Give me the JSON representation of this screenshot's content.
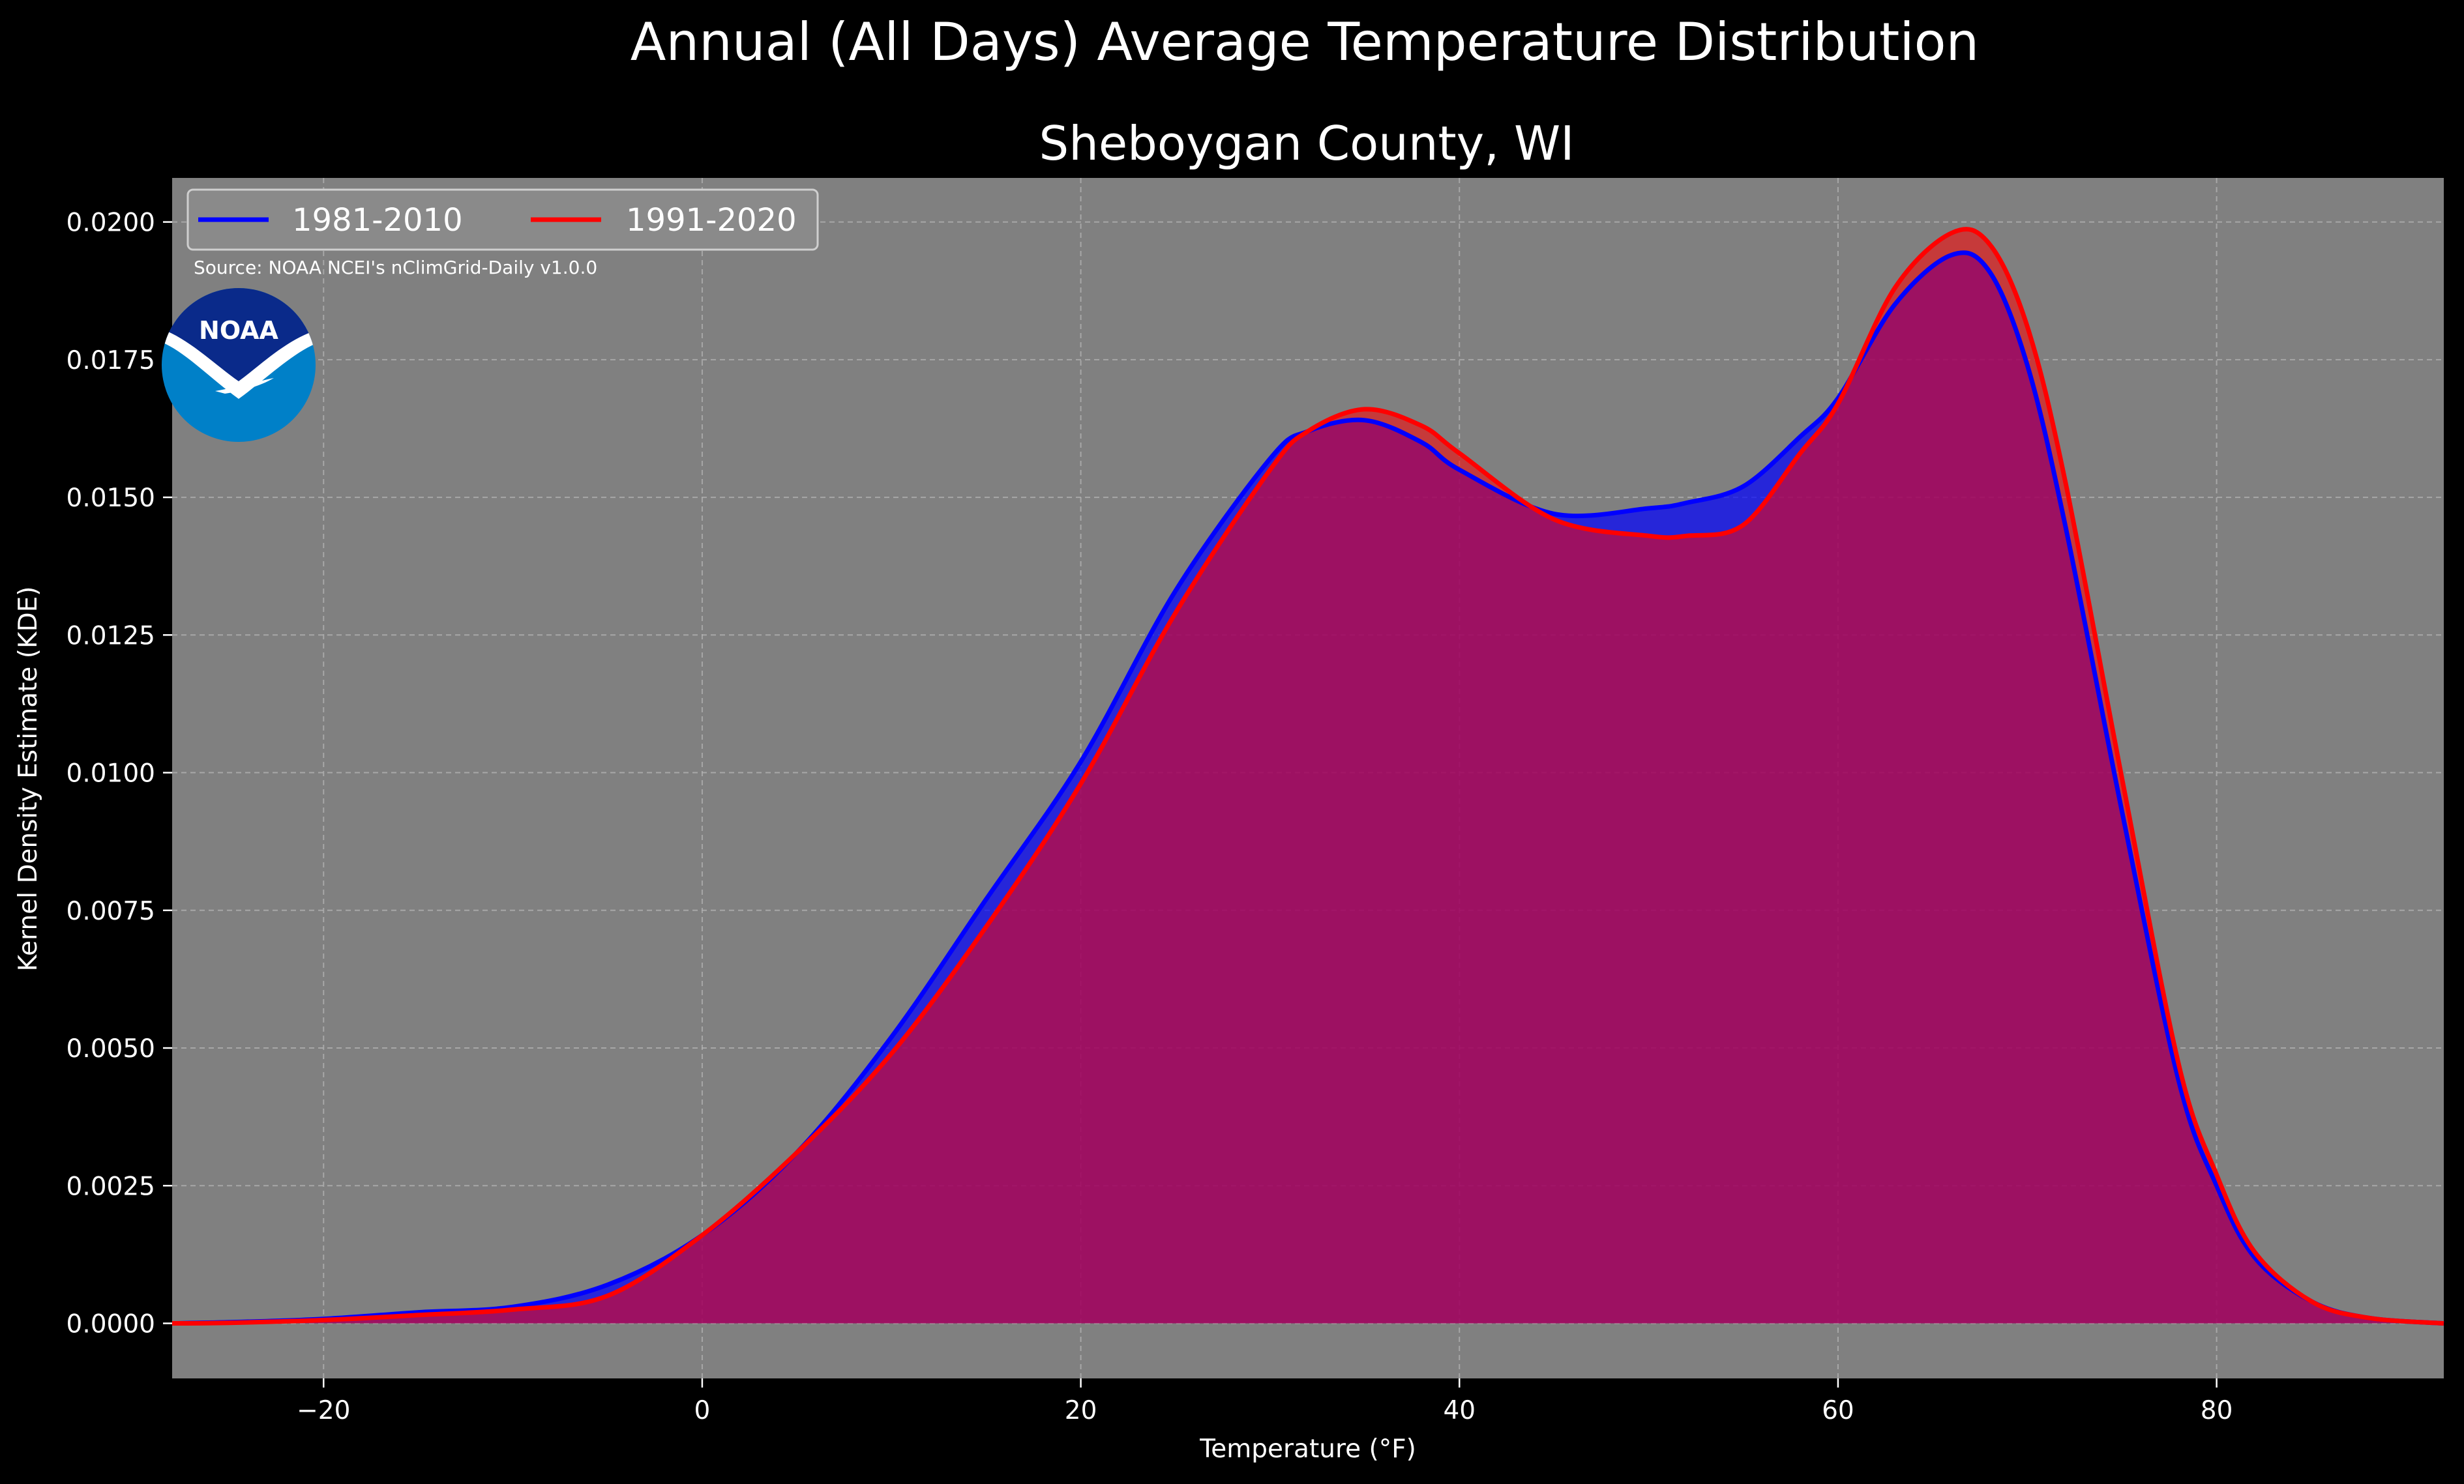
{
  "title": "Annual (All Days) Average Temperature Distribution",
  "subtitle": "Sheboygan County, WI",
  "source": "Source: NOAA NCEI's nClimGrid-Daily v1.0.0",
  "logo": {
    "text": "NOAA",
    "colors": {
      "top": "#0a2a8a",
      "bottom": "#0080c8",
      "bird": "#ffffff"
    }
  },
  "colors": {
    "background": "#000000",
    "plot_background": "#808080",
    "series_1981_2010": "#0000ff",
    "series_1991_2020": "#ff0000",
    "overlap_fill": "#a01e5a"
  },
  "chart_data": {
    "type": "area",
    "title": "Annual (All Days) Average Temperature Distribution",
    "subtitle": "Sheboygan County, WI",
    "xlabel": "Temperature (°F)",
    "ylabel": "Kernel Density Estimate (KDE)",
    "xlim": [
      -28,
      92
    ],
    "ylim": [
      -0.001,
      0.0208
    ],
    "xticks": [
      -20,
      0,
      20,
      40,
      60,
      80
    ],
    "xtick_labels": [
      "−20",
      "0",
      "20",
      "40",
      "60",
      "80"
    ],
    "yticks": [
      0,
      0.0025,
      0.005,
      0.0075,
      0.01,
      0.0125,
      0.015,
      0.0175,
      0.02
    ],
    "ytick_labels": [
      "0.0000",
      "0.0025",
      "0.0050",
      "0.0075",
      "0.0100",
      "0.0125",
      "0.0150",
      "0.0175",
      "0.0200"
    ],
    "grid": true,
    "legend_position": "top-left",
    "x": [
      -28,
      -25,
      -20,
      -15,
      -10,
      -5,
      0,
      5,
      10,
      15,
      20,
      25,
      30,
      32,
      35,
      38,
      40,
      45,
      50,
      52,
      55,
      58,
      60,
      63,
      66,
      68,
      70,
      72,
      75,
      78,
      80,
      82,
      85,
      88,
      92
    ],
    "series": [
      {
        "name": "1981-2010",
        "color": "#0000ff",
        "values": [
          0,
          2e-05,
          8e-05,
          0.0002,
          0.0003,
          0.0007,
          0.0016,
          0.0031,
          0.0052,
          0.0077,
          0.0102,
          0.0133,
          0.0157,
          0.0162,
          0.0164,
          0.016,
          0.0155,
          0.0147,
          0.0148,
          0.0149,
          0.0152,
          0.0161,
          0.0168,
          0.0185,
          0.0194,
          0.0191,
          0.0174,
          0.0145,
          0.0093,
          0.0044,
          0.0025,
          0.0012,
          0.0004,
          0.0001,
          0
        ]
      },
      {
        "name": "1991-2020",
        "color": "#ff0000",
        "values": [
          0,
          1e-05,
          6e-05,
          0.00015,
          0.00025,
          0.0005,
          0.0016,
          0.0031,
          0.0049,
          0.0072,
          0.0098,
          0.0129,
          0.0155,
          0.0162,
          0.0166,
          0.0163,
          0.0158,
          0.0146,
          0.0143,
          0.0143,
          0.0145,
          0.0158,
          0.0167,
          0.0188,
          0.0198,
          0.0196,
          0.0181,
          0.0153,
          0.0099,
          0.0047,
          0.0027,
          0.0013,
          0.0004,
          0.0001,
          0
        ]
      }
    ]
  }
}
